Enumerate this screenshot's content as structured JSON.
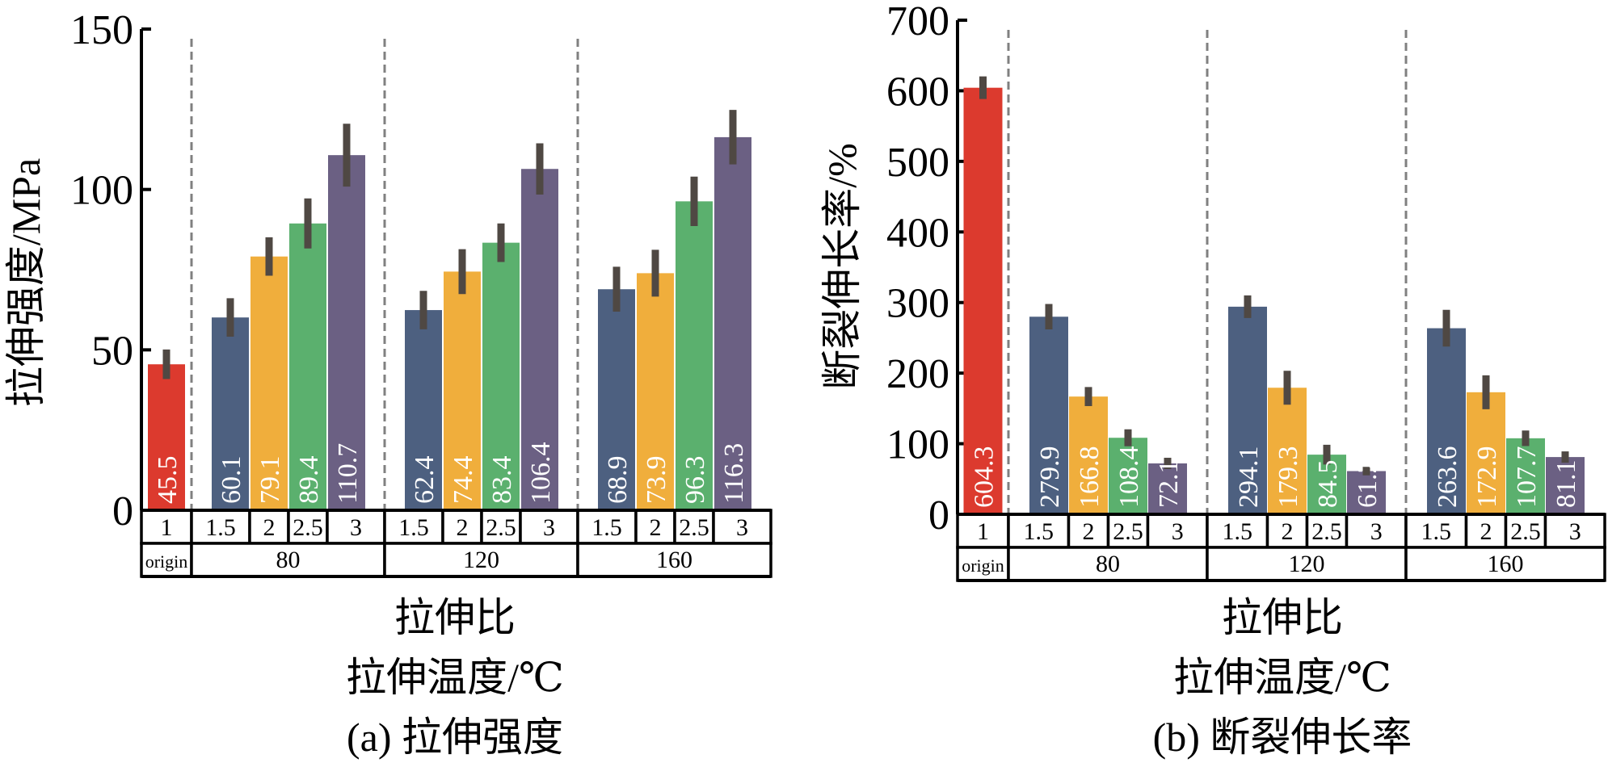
{
  "chart_data": [
    {
      "id": "a",
      "type": "bar",
      "caption": "(a) 拉伸强度",
      "ylabel": "拉伸强度/MPa",
      "xlabel_line1": "拉伸比",
      "xlabel_line2": "拉伸温度/℃",
      "ylim": [
        0,
        150
      ],
      "yticks": [
        0,
        50,
        100,
        150
      ],
      "grid": false,
      "groups": [
        {
          "temperature": "origin",
          "ratios": [
            "1"
          ],
          "values": [
            45.5
          ],
          "errors": [
            4.6
          ],
          "colors": [
            "#dc3a2e"
          ]
        },
        {
          "temperature": "80",
          "ratios": [
            "1.5",
            "2",
            "2.5",
            "3"
          ],
          "values": [
            60.1,
            79.1,
            89.4,
            110.7
          ],
          "errors": [
            6,
            6,
            7.8,
            9.8
          ],
          "colors": [
            "#4d6080",
            "#f0ae3c",
            "#5bb06e",
            "#6b6083"
          ]
        },
        {
          "temperature": "120",
          "ratios": [
            "1.5",
            "2",
            "2.5",
            "3"
          ],
          "values": [
            62.4,
            74.4,
            83.4,
            106.4
          ],
          "errors": [
            6,
            7,
            6,
            8
          ],
          "colors": [
            "#4d6080",
            "#f0ae3c",
            "#5bb06e",
            "#6b6083"
          ]
        },
        {
          "temperature": "160",
          "ratios": [
            "1.5",
            "2",
            "2.5",
            "3"
          ],
          "values": [
            68.9,
            73.9,
            96.3,
            116.3
          ],
          "errors": [
            7,
            7.3,
            7.7,
            8.5
          ],
          "colors": [
            "#4d6080",
            "#f0ae3c",
            "#5bb06e",
            "#6b6083"
          ]
        }
      ]
    },
    {
      "id": "b",
      "type": "bar",
      "caption": "(b) 断裂伸长率",
      "ylabel": "断裂伸长率/%",
      "xlabel_line1": "拉伸比",
      "xlabel_line2": "拉伸温度/℃",
      "ylim": [
        0,
        700
      ],
      "yticks": [
        0,
        100,
        200,
        300,
        400,
        500,
        600,
        700
      ],
      "grid": false,
      "groups": [
        {
          "temperature": "origin",
          "ratios": [
            "1"
          ],
          "values": [
            604.3
          ],
          "errors": [
            16
          ],
          "colors": [
            "#dc3a2e"
          ]
        },
        {
          "temperature": "80",
          "ratios": [
            "1.5",
            "2",
            "2.5",
            "3"
          ],
          "values": [
            279.9,
            166.8,
            108.4,
            72.1
          ],
          "errors": [
            18,
            13.5,
            12,
            8
          ],
          "colors": [
            "#4d6080",
            "#f0ae3c",
            "#5bb06e",
            "#6b6083"
          ]
        },
        {
          "temperature": "120",
          "ratios": [
            "1.5",
            "2",
            "2.5",
            "3"
          ],
          "values": [
            294.1,
            179.3,
            84.5,
            61.2
          ],
          "errors": [
            16,
            24,
            14,
            6
          ],
          "colors": [
            "#4d6080",
            "#f0ae3c",
            "#5bb06e",
            "#6b6083"
          ]
        },
        {
          "temperature": "160",
          "ratios": [
            "1.5",
            "2",
            "2.5",
            "3"
          ],
          "values": [
            263.6,
            172.9,
            107.7,
            81.1
          ],
          "errors": [
            26,
            24,
            11,
            8
          ],
          "colors": [
            "#4d6080",
            "#f0ae3c",
            "#5bb06e",
            "#6b6083"
          ]
        }
      ]
    }
  ],
  "style": {
    "error_bar_color": "#4f4843",
    "separator_color": "#808080",
    "value_label_color": "#ffffff"
  }
}
